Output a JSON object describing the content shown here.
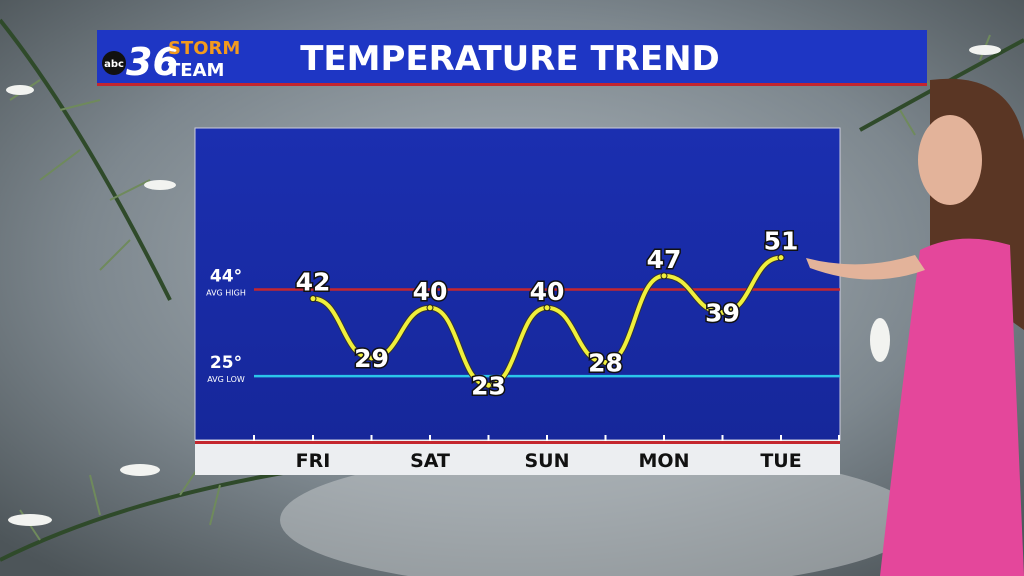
{
  "branding": {
    "network": "abc",
    "channel": "36",
    "line1": "STORM",
    "line2": "TEAM"
  },
  "chart_data": {
    "type": "line",
    "title": "TEMPERATURE TREND",
    "categories": [
      "FRI",
      null,
      "SAT",
      null,
      "SUN",
      null,
      "MON",
      null,
      "TUE"
    ],
    "series": [
      {
        "color": "#f0f03c",
        "values": [
          42,
          29,
          40,
          23,
          40,
          28,
          47,
          39,
          51
        ]
      }
    ],
    "ylim": [
      11,
      79
    ],
    "reference_lines": [
      {
        "value": 44,
        "label": "44°",
        "note": "AVG HIGH",
        "color": "#c4262e"
      },
      {
        "value": 25,
        "label": "25°",
        "note": "AVG LOW",
        "color": "#2bc6ea"
      }
    ]
  }
}
